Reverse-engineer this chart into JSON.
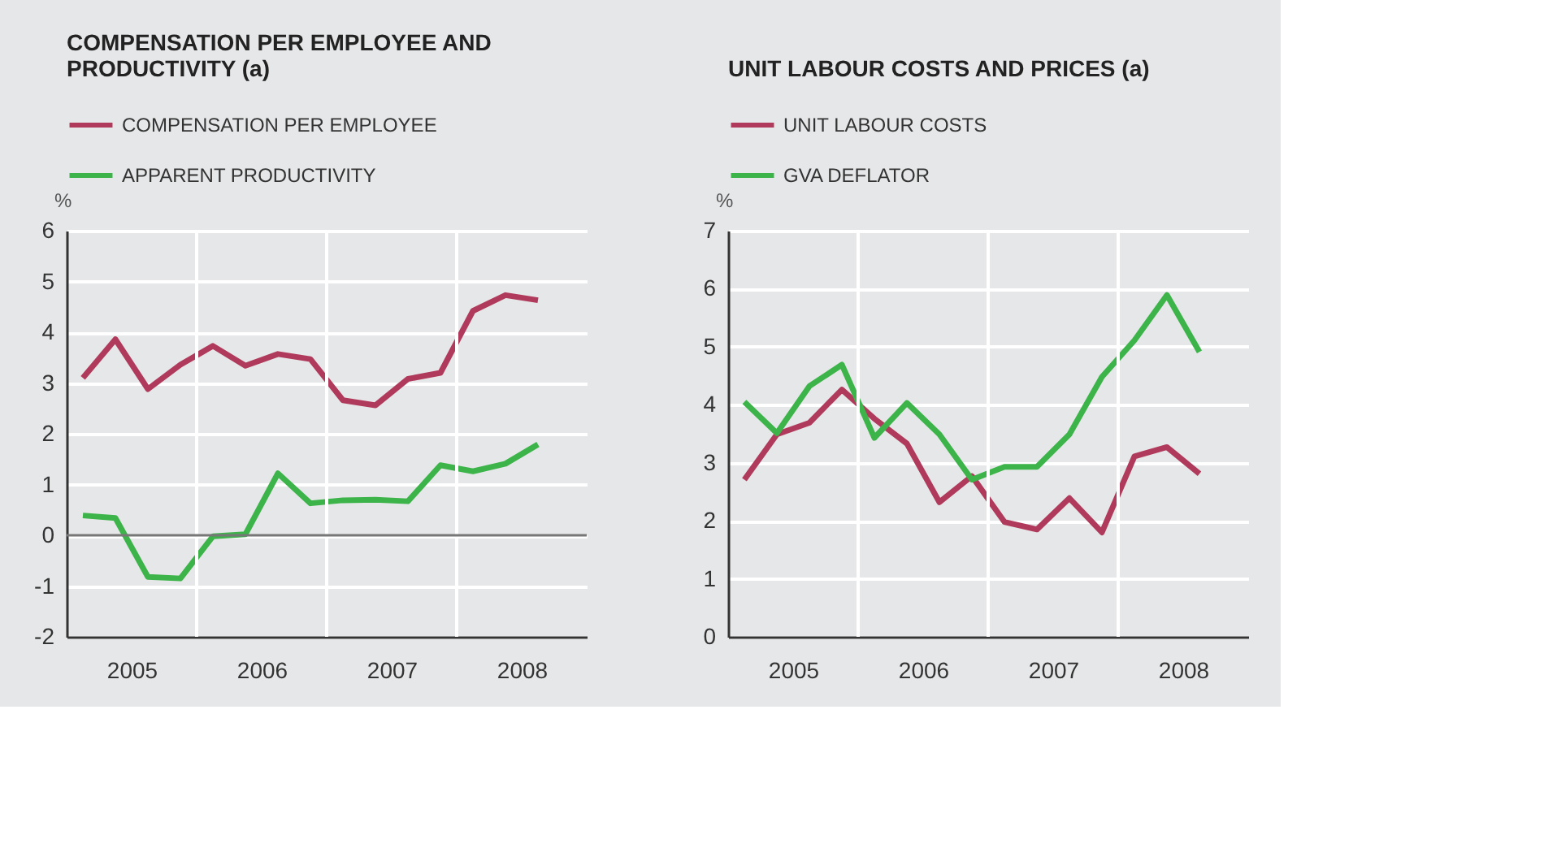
{
  "chart_data": [
    {
      "type": "line",
      "title": "COMPENSATION PER EMPLOYEE AND PRODUCTIVITY (a)",
      "ylabel": "%",
      "x": [
        2005.125,
        2005.375,
        2005.625,
        2005.875,
        2006.125,
        2006.375,
        2006.625,
        2006.875,
        2007.125,
        2007.375,
        2007.625,
        2007.875,
        2008.125,
        2008.375,
        2008.625
      ],
      "xlim": [
        2005,
        2009
      ],
      "xticks": [
        {
          "value": 2005.5,
          "label": "2005"
        },
        {
          "value": 2006,
          "label": null
        },
        {
          "value": 2006.5,
          "label": "2006"
        },
        {
          "value": 2007,
          "label": null
        },
        {
          "value": 2007.5,
          "label": "2007"
        },
        {
          "value": 2008,
          "label": null
        },
        {
          "value": 2008.5,
          "label": "2008"
        }
      ],
      "ylim": [
        -2,
        6
      ],
      "yticks": [
        -2,
        -1,
        0,
        1,
        2,
        3,
        4,
        5,
        6
      ],
      "grid": true,
      "legend": "top",
      "ref_lines": [
        {
          "axis": "y",
          "value": 0,
          "label": null,
          "color": "#777777"
        }
      ],
      "series": [
        {
          "name": "COMPENSATION PER EMPLOYEE",
          "color": "#b03a5b",
          "values": [
            3.1,
            3.86,
            2.88,
            3.36,
            3.73,
            3.34,
            3.57,
            3.47,
            2.66,
            2.56,
            3.08,
            3.2,
            4.42,
            4.73,
            4.63
          ]
        },
        {
          "name": "APPARENT PRODUCTIVITY",
          "color": "#3cb44a",
          "values": [
            0.39,
            0.34,
            -0.82,
            -0.85,
            -0.02,
            0.02,
            1.22,
            0.63,
            0.69,
            0.7,
            0.67,
            1.38,
            1.26,
            1.41,
            1.79
          ]
        }
      ]
    },
    {
      "type": "line",
      "title": "UNIT LABOUR COSTS AND PRICES (a)",
      "ylabel": "%",
      "x": [
        2005.125,
        2005.375,
        2005.625,
        2005.875,
        2006.125,
        2006.375,
        2006.625,
        2006.875,
        2007.125,
        2007.375,
        2007.625,
        2007.875,
        2008.125,
        2008.375,
        2008.625
      ],
      "xlim": [
        2005,
        2009
      ],
      "xticks": [
        {
          "value": 2005.5,
          "label": "2005"
        },
        {
          "value": 2006,
          "label": null
        },
        {
          "value": 2006.5,
          "label": "2006"
        },
        {
          "value": 2007,
          "label": null
        },
        {
          "value": 2007.5,
          "label": "2007"
        },
        {
          "value": 2008,
          "label": null
        },
        {
          "value": 2008.5,
          "label": "2008"
        }
      ],
      "ylim": [
        0,
        7
      ],
      "yticks": [
        0,
        1,
        2,
        3,
        4,
        5,
        6,
        7
      ],
      "grid": true,
      "legend": "top",
      "series": [
        {
          "name": "UNIT LABOUR COSTS",
          "color": "#b03a5b",
          "values": [
            2.71,
            3.49,
            3.69,
            4.26,
            3.76,
            3.33,
            2.32,
            2.77,
            1.98,
            1.85,
            2.39,
            1.8,
            3.11,
            3.27,
            2.81
          ]
        },
        {
          "name": "GVA DEFLATOR",
          "color": "#3cb44a",
          "values": [
            4.05,
            3.51,
            4.32,
            4.69,
            3.43,
            4.03,
            3.49,
            2.71,
            2.93,
            2.93,
            3.49,
            4.48,
            5.11,
            5.89,
            4.91
          ]
        }
      ]
    }
  ]
}
